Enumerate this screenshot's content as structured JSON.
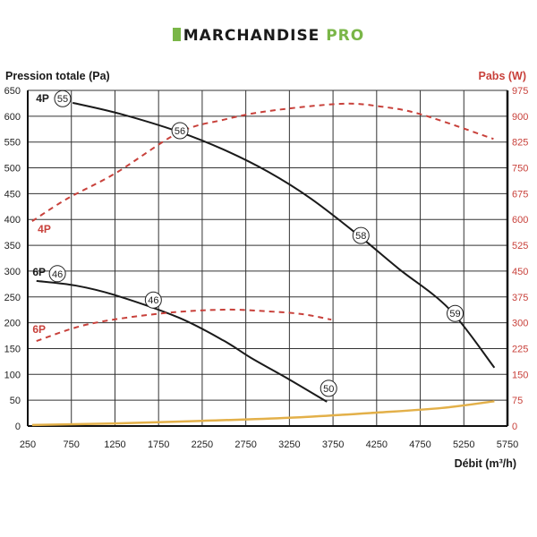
{
  "logo": {
    "part1": "MARCHANDISE",
    "part2": "PRO"
  },
  "chart_data": {
    "type": "line",
    "ylabel": "Pression totale (Pa)",
    "y2label": "Pabs (W)",
    "xlabel": "Débit (m³/h)",
    "xlim": [
      250,
      5750
    ],
    "ylim": [
      0,
      650
    ],
    "y2lim": [
      0,
      975
    ],
    "xticks": [
      250,
      750,
      1250,
      1750,
      2250,
      2750,
      3250,
      3750,
      4250,
      4750,
      5250,
      5750
    ],
    "yticks": [
      0,
      50,
      100,
      150,
      200,
      250,
      300,
      350,
      400,
      450,
      500,
      550,
      600,
      650
    ],
    "y2ticks": [
      0,
      75,
      150,
      225,
      300,
      375,
      450,
      525,
      600,
      675,
      750,
      825,
      900,
      975
    ],
    "grid": true,
    "colors": {
      "pressure": "#1a1a1a",
      "power": "#c8413b",
      "other": "#e3b049",
      "axis_right_text": "#c8413b"
    },
    "series": [
      {
        "name": "4P pressure",
        "axis": "left",
        "style": "solid",
        "color": "#1a1a1a",
        "x": [
          765,
          1300,
          1980,
          2500,
          3010,
          3500,
          4030,
          4500,
          5080,
          5600
        ],
        "y": [
          626,
          605,
          570,
          535,
          492,
          440,
          371,
          305,
          227,
          113
        ]
      },
      {
        "name": "4P power",
        "axis": "right",
        "style": "dashed",
        "color": "#c8413b",
        "x": [
          300,
          700,
          1260,
          1980,
          2500,
          3010,
          3840,
          4300,
          4765,
          5590
        ],
        "y": [
          595,
          660,
          735,
          852,
          890,
          915,
          936,
          928,
          905,
          834
        ]
      },
      {
        "name": "6P pressure",
        "axis": "left",
        "style": "solid",
        "color": "#1a1a1a",
        "x": [
          350,
          800,
          1260,
          1980,
          2500,
          2810,
          3250,
          3680
        ],
        "y": [
          281,
          272,
          253,
          210,
          165,
          132,
          90,
          47
        ]
      },
      {
        "name": "6P power",
        "axis": "right",
        "style": "dashed",
        "color": "#c8413b",
        "x": [
          350,
          950,
          1780,
          2500,
          3010,
          3400,
          3730
        ],
        "y": [
          247,
          296,
          327,
          338,
          333,
          325,
          309
        ]
      },
      {
        "name": "curve-3",
        "axis": "left",
        "style": "solid",
        "color": "#e3b049",
        "x": [
          300,
          1250,
          2250,
          3250,
          4250,
          5000,
          5600
        ],
        "y": [
          2,
          5,
          10,
          16,
          26,
          35,
          48
        ]
      }
    ],
    "annotations": {
      "series_labels": [
        {
          "text": "4P",
          "color": "#1a1a1a",
          "x": 420,
          "y": 634
        },
        {
          "text": "4P",
          "color": "#c8413b",
          "x": 440,
          "y": 381
        },
        {
          "text": "6P",
          "color": "#1a1a1a",
          "x": 380,
          "y": 298
        },
        {
          "text": "6P",
          "color": "#c8413b",
          "x": 380,
          "y": 187
        }
      ],
      "circles": [
        {
          "text": "55",
          "x": 650,
          "y": 634
        },
        {
          "text": "56",
          "x": 1995,
          "y": 572
        },
        {
          "text": "58",
          "x": 4070,
          "y": 369
        },
        {
          "text": "59",
          "x": 5150,
          "y": 218
        },
        {
          "text": "46",
          "x": 590,
          "y": 295
        },
        {
          "text": "46",
          "x": 1690,
          "y": 244
        },
        {
          "text": "50",
          "x": 3700,
          "y": 73
        }
      ]
    }
  }
}
